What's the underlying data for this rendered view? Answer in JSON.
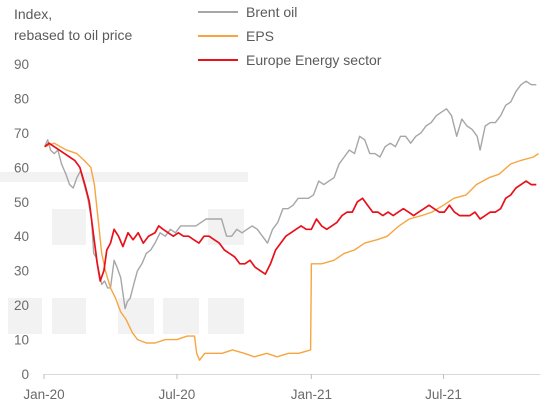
{
  "chart_data": {
    "type": "line",
    "ylabel": "Index,\nrebased to oil price",
    "ylabel_lines": [
      "Index,",
      "rebased to oil price"
    ],
    "ylim": [
      0,
      90
    ],
    "yticks": [
      "0",
      "10",
      "20",
      "30",
      "40",
      "50",
      "60",
      "70",
      "80",
      "90"
    ],
    "xtick_labels": [
      "Jan-20",
      "Jul-20",
      "Jan-21",
      "Jul-21"
    ],
    "xtick_dates": [
      "2020-01-01",
      "2020-07-01",
      "2021-01-01",
      "2021-07-01"
    ],
    "xlim": [
      "2020-01-01",
      "2021-11-10"
    ],
    "legend_position": "top-right",
    "series": [
      {
        "name": "Brent oil",
        "color": "#a6a6a6",
        "points": [
          [
            "2020-01-02",
            66
          ],
          [
            "2020-01-06",
            68
          ],
          [
            "2020-01-10",
            65
          ],
          [
            "2020-01-15",
            64
          ],
          [
            "2020-01-20",
            65
          ],
          [
            "2020-01-25",
            61
          ],
          [
            "2020-01-31",
            58
          ],
          [
            "2020-02-05",
            55
          ],
          [
            "2020-02-10",
            54
          ],
          [
            "2020-02-15",
            57
          ],
          [
            "2020-02-20",
            59
          ],
          [
            "2020-02-25",
            55
          ],
          [
            "2020-03-01",
            51
          ],
          [
            "2020-03-06",
            45
          ],
          [
            "2020-03-09",
            35
          ],
          [
            "2020-03-12",
            34
          ],
          [
            "2020-03-16",
            30
          ],
          [
            "2020-03-20",
            26
          ],
          [
            "2020-03-24",
            27
          ],
          [
            "2020-03-28",
            25
          ],
          [
            "2020-04-01",
            25
          ],
          [
            "2020-04-06",
            33
          ],
          [
            "2020-04-10",
            31
          ],
          [
            "2020-04-15",
            28
          ],
          [
            "2020-04-21",
            19
          ],
          [
            "2020-04-24",
            21
          ],
          [
            "2020-04-28",
            22
          ],
          [
            "2020-05-04",
            27
          ],
          [
            "2020-05-08",
            30
          ],
          [
            "2020-05-14",
            32
          ],
          [
            "2020-05-20",
            35
          ],
          [
            "2020-05-26",
            36
          ],
          [
            "2020-06-01",
            38
          ],
          [
            "2020-06-08",
            41
          ],
          [
            "2020-06-15",
            40
          ],
          [
            "2020-06-22",
            42
          ],
          [
            "2020-06-29",
            41
          ],
          [
            "2020-07-06",
            43
          ],
          [
            "2020-07-13",
            43
          ],
          [
            "2020-07-20",
            43
          ],
          [
            "2020-07-27",
            43
          ],
          [
            "2020-08-03",
            44
          ],
          [
            "2020-08-10",
            45
          ],
          [
            "2020-08-17",
            45
          ],
          [
            "2020-08-24",
            45
          ],
          [
            "2020-08-31",
            45
          ],
          [
            "2020-09-07",
            40
          ],
          [
            "2020-09-14",
            40
          ],
          [
            "2020-09-21",
            42
          ],
          [
            "2020-09-28",
            41
          ],
          [
            "2020-10-05",
            42
          ],
          [
            "2020-10-12",
            43
          ],
          [
            "2020-10-19",
            42
          ],
          [
            "2020-10-26",
            40
          ],
          [
            "2020-11-02",
            38
          ],
          [
            "2020-11-09",
            42
          ],
          [
            "2020-11-16",
            44
          ],
          [
            "2020-11-23",
            48
          ],
          [
            "2020-11-30",
            48
          ],
          [
            "2020-12-07",
            49
          ],
          [
            "2020-12-14",
            51
          ],
          [
            "2020-12-21",
            51
          ],
          [
            "2020-12-28",
            51
          ],
          [
            "2021-01-04",
            52
          ],
          [
            "2021-01-11",
            56
          ],
          [
            "2021-01-18",
            55
          ],
          [
            "2021-01-25",
            56
          ],
          [
            "2021-02-01",
            57
          ],
          [
            "2021-02-08",
            61
          ],
          [
            "2021-02-15",
            63
          ],
          [
            "2021-02-22",
            65
          ],
          [
            "2021-03-01",
            64
          ],
          [
            "2021-03-08",
            69
          ],
          [
            "2021-03-15",
            68
          ],
          [
            "2021-03-22",
            64
          ],
          [
            "2021-03-29",
            64
          ],
          [
            "2021-04-05",
            63
          ],
          [
            "2021-04-12",
            66
          ],
          [
            "2021-04-19",
            67
          ],
          [
            "2021-04-26",
            66
          ],
          [
            "2021-05-03",
            69
          ],
          [
            "2021-05-10",
            69
          ],
          [
            "2021-05-17",
            67
          ],
          [
            "2021-05-24",
            69
          ],
          [
            "2021-05-31",
            70
          ],
          [
            "2021-06-07",
            72
          ],
          [
            "2021-06-14",
            73
          ],
          [
            "2021-06-21",
            75
          ],
          [
            "2021-06-28",
            76
          ],
          [
            "2021-07-05",
            77
          ],
          [
            "2021-07-12",
            75
          ],
          [
            "2021-07-19",
            69
          ],
          [
            "2021-07-26",
            74
          ],
          [
            "2021-08-02",
            72
          ],
          [
            "2021-08-09",
            71
          ],
          [
            "2021-08-16",
            69
          ],
          [
            "2021-08-20",
            65
          ],
          [
            "2021-08-27",
            72
          ],
          [
            "2021-09-03",
            73
          ],
          [
            "2021-09-10",
            73
          ],
          [
            "2021-09-17",
            75
          ],
          [
            "2021-09-24",
            78
          ],
          [
            "2021-10-01",
            79
          ],
          [
            "2021-10-08",
            82
          ],
          [
            "2021-10-15",
            84
          ],
          [
            "2021-10-22",
            85
          ],
          [
            "2021-10-29",
            84
          ],
          [
            "2021-11-05",
            84
          ]
        ]
      },
      {
        "name": "EPS",
        "color": "#f7a540",
        "points": [
          [
            "2020-01-02",
            66
          ],
          [
            "2020-01-15",
            67
          ],
          [
            "2020-02-01",
            65
          ],
          [
            "2020-02-15",
            64
          ],
          [
            "2020-02-25",
            62
          ],
          [
            "2020-03-05",
            60
          ],
          [
            "2020-03-10",
            55
          ],
          [
            "2020-03-15",
            45
          ],
          [
            "2020-03-20",
            35
          ],
          [
            "2020-03-25",
            30
          ],
          [
            "2020-04-01",
            25
          ],
          [
            "2020-04-08",
            22
          ],
          [
            "2020-04-15",
            18
          ],
          [
            "2020-04-22",
            16
          ],
          [
            "2020-05-01",
            12
          ],
          [
            "2020-05-08",
            10
          ],
          [
            "2020-05-20",
            9
          ],
          [
            "2020-06-01",
            9
          ],
          [
            "2020-06-15",
            10
          ],
          [
            "2020-07-01",
            10
          ],
          [
            "2020-07-15",
            11
          ],
          [
            "2020-07-25",
            11
          ],
          [
            "2020-07-28",
            6
          ],
          [
            "2020-08-01",
            4
          ],
          [
            "2020-08-08",
            6
          ],
          [
            "2020-08-15",
            6
          ],
          [
            "2020-09-01",
            6
          ],
          [
            "2020-09-15",
            7
          ],
          [
            "2020-10-01",
            6
          ],
          [
            "2020-10-15",
            5
          ],
          [
            "2020-11-01",
            6
          ],
          [
            "2020-11-15",
            5
          ],
          [
            "2020-12-01",
            6
          ],
          [
            "2020-12-15",
            6
          ],
          [
            "2020-12-31",
            7
          ],
          [
            "2021-01-01",
            32
          ],
          [
            "2021-01-15",
            32
          ],
          [
            "2021-02-01",
            33
          ],
          [
            "2021-02-15",
            35
          ],
          [
            "2021-03-01",
            36
          ],
          [
            "2021-03-15",
            38
          ],
          [
            "2021-04-01",
            39
          ],
          [
            "2021-04-15",
            40
          ],
          [
            "2021-05-01",
            43
          ],
          [
            "2021-05-15",
            45
          ],
          [
            "2021-06-01",
            46
          ],
          [
            "2021-06-15",
            47
          ],
          [
            "2021-07-01",
            49
          ],
          [
            "2021-07-15",
            51
          ],
          [
            "2021-08-01",
            52
          ],
          [
            "2021-08-15",
            55
          ],
          [
            "2021-09-01",
            57
          ],
          [
            "2021-09-15",
            58
          ],
          [
            "2021-10-01",
            61
          ],
          [
            "2021-10-15",
            62
          ],
          [
            "2021-11-01",
            63
          ],
          [
            "2021-11-08",
            64
          ]
        ]
      },
      {
        "name": "Europe Energy sector",
        "color": "#e8101a",
        "points": [
          [
            "2020-01-02",
            66
          ],
          [
            "2020-01-08",
            67
          ],
          [
            "2020-01-15",
            66
          ],
          [
            "2020-01-22",
            65
          ],
          [
            "2020-01-29",
            64
          ],
          [
            "2020-02-05",
            63
          ],
          [
            "2020-02-12",
            62
          ],
          [
            "2020-02-19",
            60
          ],
          [
            "2020-02-26",
            55
          ],
          [
            "2020-03-03",
            50
          ],
          [
            "2020-03-09",
            40
          ],
          [
            "2020-03-14",
            32
          ],
          [
            "2020-03-18",
            27
          ],
          [
            "2020-03-23",
            30
          ],
          [
            "2020-03-27",
            36
          ],
          [
            "2020-04-01",
            38
          ],
          [
            "2020-04-06",
            42
          ],
          [
            "2020-04-12",
            40
          ],
          [
            "2020-04-18",
            37
          ],
          [
            "2020-04-25",
            41
          ],
          [
            "2020-05-02",
            39
          ],
          [
            "2020-05-09",
            41
          ],
          [
            "2020-05-16",
            38
          ],
          [
            "2020-05-23",
            40
          ],
          [
            "2020-06-01",
            41
          ],
          [
            "2020-06-06",
            43
          ],
          [
            "2020-06-12",
            42
          ],
          [
            "2020-06-19",
            41
          ],
          [
            "2020-06-26",
            40
          ],
          [
            "2020-07-03",
            41
          ],
          [
            "2020-07-10",
            40
          ],
          [
            "2020-07-17",
            40
          ],
          [
            "2020-07-24",
            39
          ],
          [
            "2020-07-31",
            38
          ],
          [
            "2020-08-07",
            40
          ],
          [
            "2020-08-14",
            40
          ],
          [
            "2020-08-21",
            39
          ],
          [
            "2020-08-28",
            38
          ],
          [
            "2020-09-04",
            36
          ],
          [
            "2020-09-11",
            35
          ],
          [
            "2020-09-18",
            34
          ],
          [
            "2020-09-25",
            32
          ],
          [
            "2020-10-02",
            32
          ],
          [
            "2020-10-09",
            33
          ],
          [
            "2020-10-16",
            31
          ],
          [
            "2020-10-23",
            30
          ],
          [
            "2020-10-30",
            29
          ],
          [
            "2020-11-06",
            32
          ],
          [
            "2020-11-13",
            36
          ],
          [
            "2020-11-20",
            38
          ],
          [
            "2020-11-27",
            40
          ],
          [
            "2020-12-04",
            41
          ],
          [
            "2020-12-11",
            42
          ],
          [
            "2020-12-18",
            43
          ],
          [
            "2020-12-25",
            42
          ],
          [
            "2021-01-01",
            42
          ],
          [
            "2021-01-08",
            45
          ],
          [
            "2021-01-15",
            43
          ],
          [
            "2021-01-22",
            42
          ],
          [
            "2021-01-29",
            43
          ],
          [
            "2021-02-05",
            44
          ],
          [
            "2021-02-12",
            46
          ],
          [
            "2021-02-19",
            47
          ],
          [
            "2021-02-26",
            47
          ],
          [
            "2021-03-05",
            50
          ],
          [
            "2021-03-12",
            51
          ],
          [
            "2021-03-19",
            49
          ],
          [
            "2021-03-26",
            47
          ],
          [
            "2021-04-02",
            47
          ],
          [
            "2021-04-09",
            46
          ],
          [
            "2021-04-16",
            47
          ],
          [
            "2021-04-23",
            46
          ],
          [
            "2021-04-30",
            47
          ],
          [
            "2021-05-07",
            48
          ],
          [
            "2021-05-14",
            47
          ],
          [
            "2021-05-21",
            46
          ],
          [
            "2021-05-28",
            47
          ],
          [
            "2021-06-04",
            48
          ],
          [
            "2021-06-11",
            49
          ],
          [
            "2021-06-18",
            48
          ],
          [
            "2021-06-25",
            47
          ],
          [
            "2021-07-02",
            47
          ],
          [
            "2021-07-09",
            49
          ],
          [
            "2021-07-16",
            47
          ],
          [
            "2021-07-23",
            46
          ],
          [
            "2021-07-30",
            46
          ],
          [
            "2021-08-06",
            46
          ],
          [
            "2021-08-13",
            47
          ],
          [
            "2021-08-20",
            45
          ],
          [
            "2021-08-27",
            46
          ],
          [
            "2021-09-03",
            47
          ],
          [
            "2021-09-10",
            47
          ],
          [
            "2021-09-17",
            48
          ],
          [
            "2021-09-24",
            51
          ],
          [
            "2021-10-01",
            52
          ],
          [
            "2021-10-08",
            54
          ],
          [
            "2021-10-15",
            55
          ],
          [
            "2021-10-22",
            56
          ],
          [
            "2021-10-29",
            55
          ],
          [
            "2021-11-05",
            55
          ]
        ]
      }
    ]
  }
}
